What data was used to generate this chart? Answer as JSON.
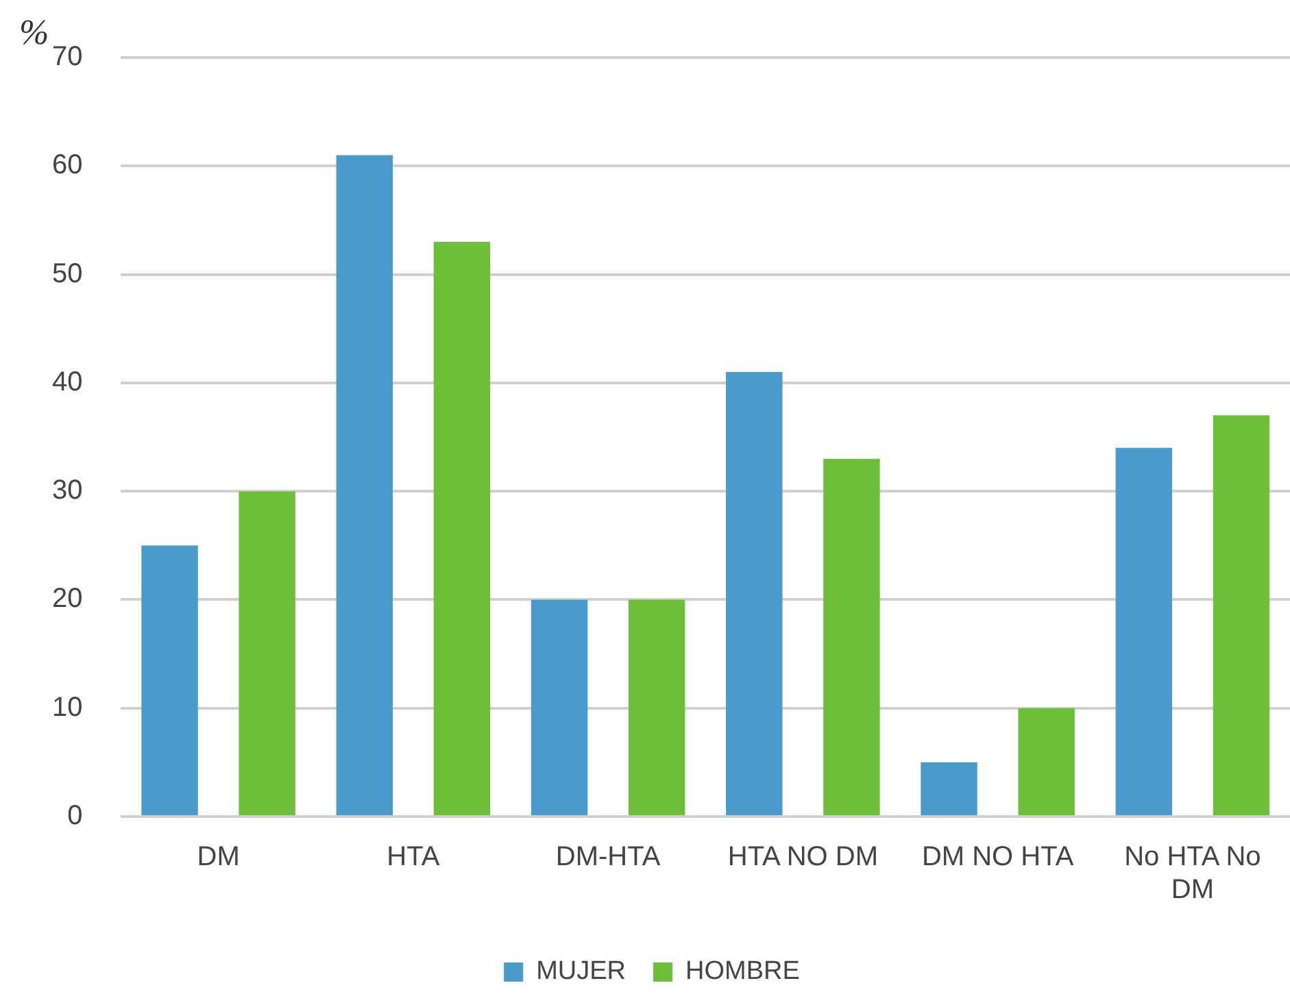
{
  "chart_data": {
    "type": "bar",
    "ylabel": "%",
    "categories": [
      "DM",
      "HTA",
      "DM-HTA",
      "HTA NO DM",
      "DM NO HTA",
      "No HTA No DM"
    ],
    "series": [
      {
        "name": "MUJER",
        "color": "#4a9bcb",
        "values": [
          25,
          61,
          20,
          41,
          5,
          34
        ]
      },
      {
        "name": "HOMBRE",
        "color": "#6dbf3a",
        "values": [
          30,
          53,
          20,
          33,
          10,
          37
        ]
      }
    ],
    "ylim": [
      0,
      70
    ],
    "yticks": [
      0,
      10,
      20,
      30,
      40,
      50,
      60,
      70
    ],
    "grid": "y",
    "legend": "bottom"
  }
}
